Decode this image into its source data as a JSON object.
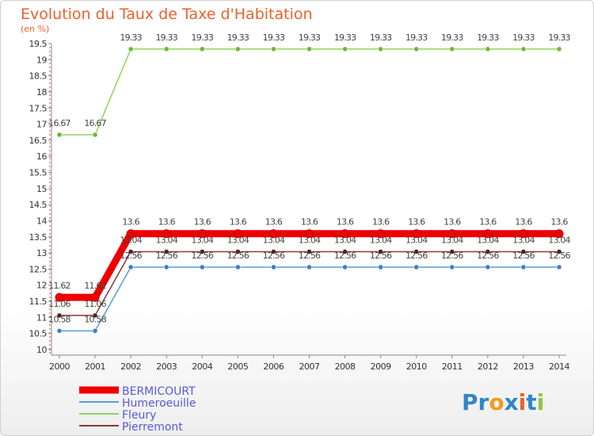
{
  "chart_data": {
    "type": "line",
    "title": "Evolution du Taux de Taxe d'Habitation",
    "subtitle": "(en %)",
    "x": [
      "2000",
      "2001",
      "2002",
      "2003",
      "2004",
      "2005",
      "2006",
      "2007",
      "2008",
      "2009",
      "2010",
      "2011",
      "2012",
      "2013",
      "2014"
    ],
    "ylim": [
      10,
      19.5
    ],
    "yticks": [
      "10",
      "10.5",
      "11",
      "11.5",
      "12",
      "12.5",
      "13",
      "13.5",
      "14",
      "14.5",
      "15",
      "15.5",
      "16",
      "16.5",
      "17",
      "17.5",
      "18",
      "18.5",
      "19",
      "19.5"
    ],
    "grid": false,
    "series": [
      {
        "name": "Fleury",
        "color": "#8ed45a",
        "dot": "#6ab83a",
        "values": [
          16.67,
          16.67,
          19.33,
          19.33,
          19.33,
          19.33,
          19.33,
          19.33,
          19.33,
          19.33,
          19.33,
          19.33,
          19.33,
          19.33,
          19.33
        ],
        "labels": [
          "16.67",
          "16.67",
          "19.33",
          "19.33",
          "19.33",
          "19.33",
          "19.33",
          "19.33",
          "19.33",
          "19.33",
          "19.33",
          "19.33",
          "19.33",
          "19.33",
          "19.33"
        ]
      },
      {
        "name": "Pierremont",
        "color": "#8a3a3a",
        "dot": "#5a1e1e",
        "values": [
          11.06,
          11.06,
          13.04,
          13.04,
          13.04,
          13.04,
          13.04,
          13.04,
          13.04,
          13.04,
          13.04,
          13.04,
          13.04,
          13.04,
          13.04
        ],
        "labels": [
          "11.06",
          "11.06",
          "13.04",
          "13.04",
          "13.04",
          "13.04",
          "13.04",
          "13.04",
          "13.04",
          "13.04",
          "13.04",
          "13.04",
          "13.04",
          "13.04",
          "13.04"
        ]
      },
      {
        "name": "Humeroeuille",
        "color": "#5b9bd5",
        "dot": "#3a7ec4",
        "values": [
          10.58,
          10.58,
          12.56,
          12.56,
          12.56,
          12.56,
          12.56,
          12.56,
          12.56,
          12.56,
          12.56,
          12.56,
          12.56,
          12.56,
          12.56
        ],
        "labels": [
          "10.58",
          "10.58",
          "12.56",
          "12.56",
          "12.56",
          "12.56",
          "12.56",
          "12.56",
          "12.56",
          "12.56",
          "12.56",
          "12.56",
          "12.56",
          "12.56",
          "12.56"
        ]
      },
      {
        "name": "BERMICOURT",
        "color": "#ee0000",
        "dot": "#ee0000",
        "values": [
          11.62,
          11.62,
          13.6,
          13.6,
          13.6,
          13.6,
          13.6,
          13.6,
          13.6,
          13.6,
          13.6,
          13.6,
          13.6,
          13.6,
          13.6
        ],
        "labels": [
          "11.62",
          "11.62",
          "13.6",
          "13.6",
          "13.6",
          "13.6",
          "13.6",
          "13.6",
          "13.6",
          "13.6",
          "13.6",
          "13.6",
          "13.6",
          "13.6",
          "13.6"
        ]
      }
    ],
    "legend": [
      "BERMICOURT",
      "Humeroeuille",
      "Fleury",
      "Pierremont"
    ],
    "legend_position": "bottom-left"
  },
  "brand": {
    "text": "Proxiti"
  }
}
